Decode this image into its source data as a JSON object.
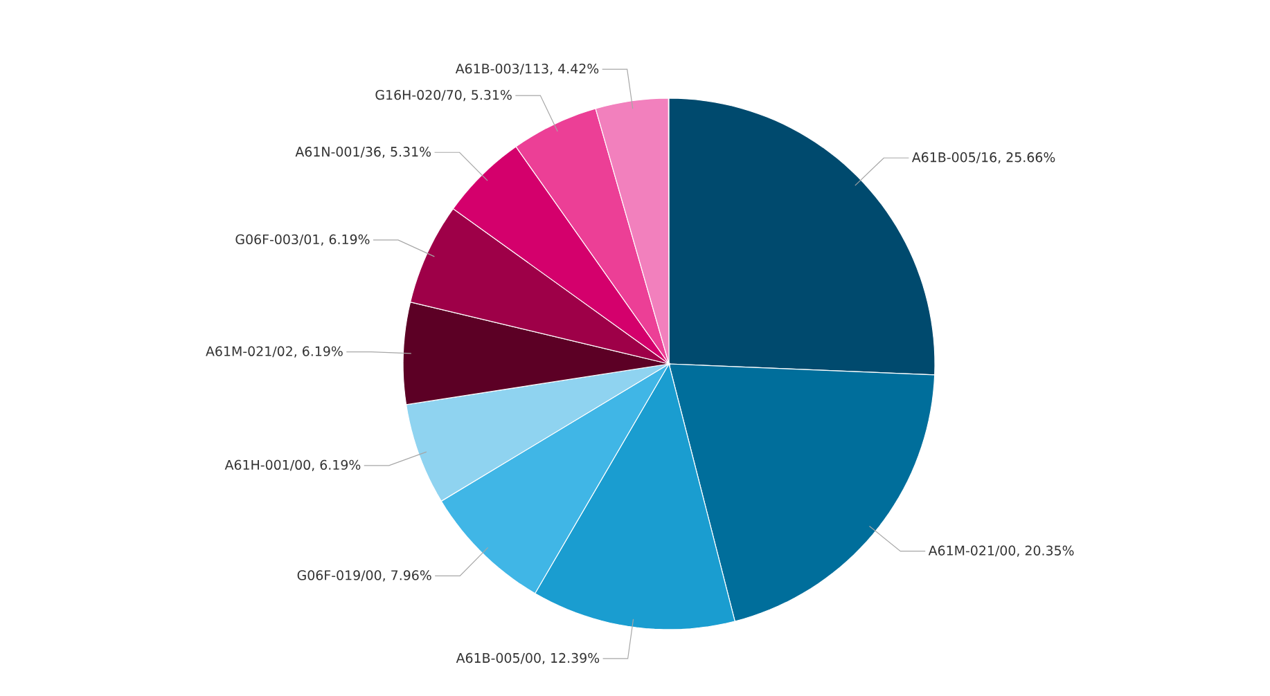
{
  "chart_data": {
    "type": "pie",
    "categories": [
      "A61B-005/16",
      "A61M-021/00",
      "A61B-005/00",
      "G06F-019/00",
      "A61H-001/00",
      "A61M-021/02",
      "G06F-003/01",
      "A61N-001/36",
      "G16H-020/70",
      "A61B-003/113"
    ],
    "values": [
      25.66,
      20.35,
      12.39,
      7.96,
      6.19,
      6.19,
      6.19,
      5.31,
      5.31,
      4.42
    ],
    "value_labels": [
      ", 25.66%",
      ", 20.35%",
      ", 12.39%",
      ", 7.96%",
      ", 6.19%",
      ", 6.19%",
      ", 6.19%",
      ", 5.31%",
      ", 5.31%",
      ", 4.42%"
    ],
    "colors": [
      "#004a6e",
      "#006e9b",
      "#1a9dd0",
      "#40b6e6",
      "#8fd3f0",
      "#5c0025",
      "#9e0048",
      "#d4006c",
      "#ec3f96",
      "#f280bd"
    ]
  }
}
